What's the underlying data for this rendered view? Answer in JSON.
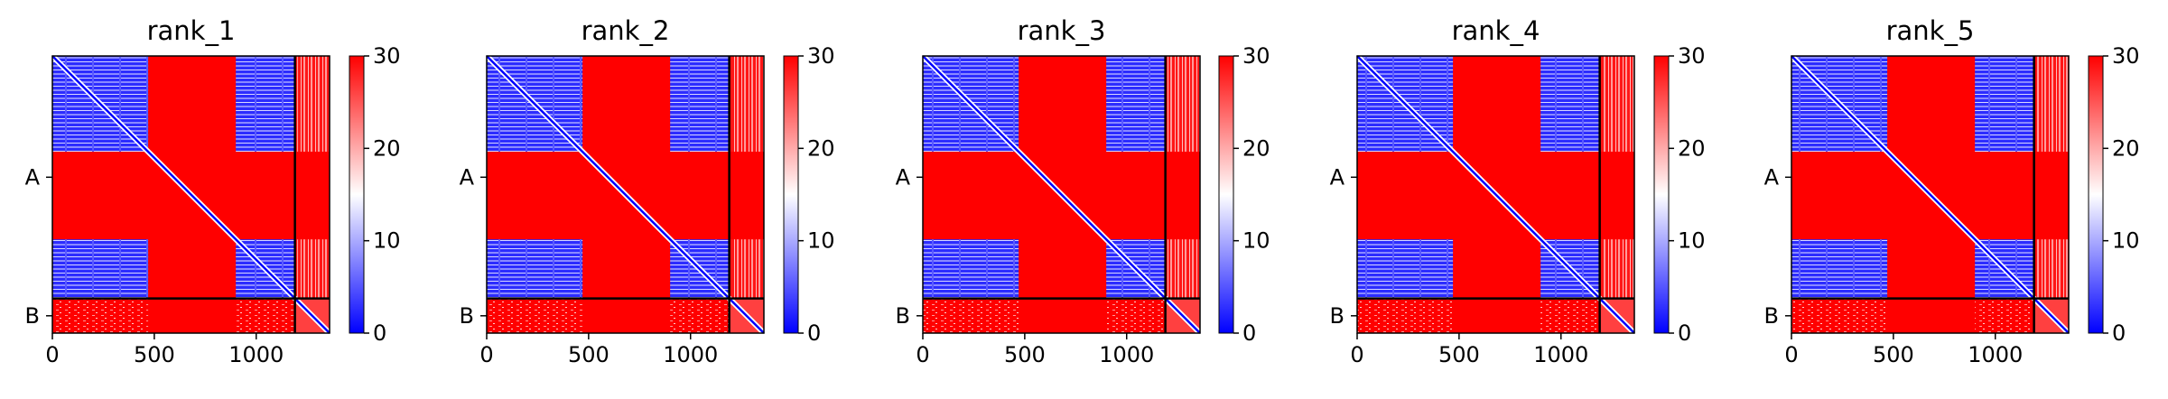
{
  "chart_data": [
    {
      "type": "heatmap",
      "title": "rank_1",
      "x_ticks": [
        0,
        500,
        1000
      ],
      "x_range": [
        0,
        1360
      ],
      "y_tick_labels": [
        "A",
        "B"
      ],
      "chain_boundaries": [
        0,
        1190,
        1360
      ],
      "colorbar": {
        "min": 0,
        "max": 30,
        "ticks": [
          0,
          10,
          20,
          30
        ],
        "colormap": "bwr"
      },
      "blue_blocks": [
        [
          0,
          470,
          0,
          470
        ],
        [
          900,
          1190,
          0,
          470
        ],
        [
          0,
          470,
          900,
          1190
        ],
        [
          900,
          1190,
          900,
          1190
        ]
      ],
      "light_bands": [
        {
          "axis": "x",
          "from": 1200,
          "to": 1360,
          "rows": [
            0,
            470
          ]
        },
        {
          "axis": "x",
          "from": 1200,
          "to": 1360,
          "rows": [
            900,
            1190
          ]
        }
      ]
    },
    {
      "type": "heatmap",
      "title": "rank_2",
      "x_ticks": [
        0,
        500,
        1000
      ],
      "x_range": [
        0,
        1360
      ],
      "y_tick_labels": [
        "A",
        "B"
      ],
      "chain_boundaries": [
        0,
        1190,
        1360
      ],
      "colorbar": {
        "min": 0,
        "max": 30,
        "ticks": [
          0,
          10,
          20,
          30
        ],
        "colormap": "bwr"
      },
      "blue_blocks": [
        [
          0,
          470,
          0,
          470
        ],
        [
          900,
          1190,
          0,
          470
        ],
        [
          0,
          470,
          900,
          1190
        ],
        [
          900,
          1190,
          900,
          1190
        ]
      ],
      "light_bands": [
        {
          "axis": "x",
          "from": 1200,
          "to": 1360,
          "rows": [
            0,
            470
          ]
        },
        {
          "axis": "x",
          "from": 1200,
          "to": 1360,
          "rows": [
            900,
            1190
          ]
        }
      ]
    },
    {
      "type": "heatmap",
      "title": "rank_3",
      "x_ticks": [
        0,
        500,
        1000
      ],
      "x_range": [
        0,
        1360
      ],
      "y_tick_labels": [
        "A",
        "B"
      ],
      "chain_boundaries": [
        0,
        1190,
        1360
      ],
      "colorbar": {
        "min": 0,
        "max": 30,
        "ticks": [
          0,
          10,
          20,
          30
        ],
        "colormap": "bwr"
      },
      "blue_blocks": [
        [
          0,
          470,
          0,
          470
        ],
        [
          900,
          1190,
          0,
          470
        ],
        [
          0,
          470,
          900,
          1190
        ],
        [
          900,
          1190,
          900,
          1190
        ]
      ],
      "light_bands": [
        {
          "axis": "x",
          "from": 1200,
          "to": 1360,
          "rows": [
            0,
            470
          ]
        },
        {
          "axis": "x",
          "from": 1200,
          "to": 1360,
          "rows": [
            900,
            1190
          ]
        }
      ]
    },
    {
      "type": "heatmap",
      "title": "rank_4",
      "x_ticks": [
        0,
        500,
        1000
      ],
      "x_range": [
        0,
        1360
      ],
      "y_tick_labels": [
        "A",
        "B"
      ],
      "chain_boundaries": [
        0,
        1190,
        1360
      ],
      "colorbar": {
        "min": 0,
        "max": 30,
        "ticks": [
          0,
          10,
          20,
          30
        ],
        "colormap": "bwr"
      },
      "blue_blocks": [
        [
          0,
          470,
          0,
          470
        ],
        [
          900,
          1190,
          0,
          470
        ],
        [
          0,
          470,
          900,
          1190
        ],
        [
          900,
          1190,
          900,
          1190
        ]
      ],
      "light_bands": [
        {
          "axis": "x",
          "from": 1200,
          "to": 1360,
          "rows": [
            0,
            470
          ]
        },
        {
          "axis": "x",
          "from": 1200,
          "to": 1360,
          "rows": [
            900,
            1190
          ]
        }
      ]
    },
    {
      "type": "heatmap",
      "title": "rank_5",
      "x_ticks": [
        0,
        500,
        1000
      ],
      "x_range": [
        0,
        1360
      ],
      "y_tick_labels": [
        "A",
        "B"
      ],
      "chain_boundaries": [
        0,
        1190,
        1360
      ],
      "colorbar": {
        "min": 0,
        "max": 30,
        "ticks": [
          0,
          10,
          20,
          30
        ],
        "colormap": "bwr"
      },
      "blue_blocks": [
        [
          0,
          470,
          0,
          470
        ],
        [
          900,
          1190,
          0,
          470
        ],
        [
          0,
          470,
          900,
          1190
        ],
        [
          900,
          1190,
          900,
          1190
        ]
      ],
      "light_bands": [
        {
          "axis": "x",
          "from": 1200,
          "to": 1360,
          "rows": [
            0,
            470
          ]
        },
        {
          "axis": "x",
          "from": 1200,
          "to": 1360,
          "rows": [
            900,
            1190
          ]
        }
      ]
    }
  ],
  "colors": {
    "low": "#0000ff",
    "mid": "#ffffff",
    "high": "#ff0000",
    "boundary": "#000000"
  }
}
